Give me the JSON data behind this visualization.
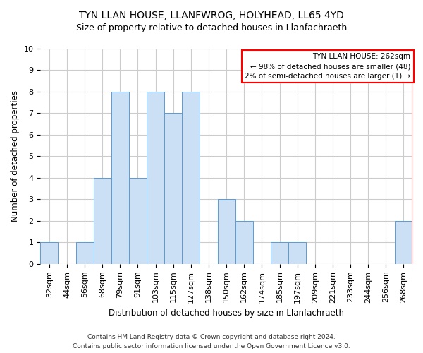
{
  "title": "TYN LLAN HOUSE, LLANFWROG, HOLYHEAD, LL65 4YD",
  "subtitle": "Size of property relative to detached houses in Llanfachraeth",
  "xlabel": "Distribution of detached houses by size in Llanfachraeth",
  "ylabel": "Number of detached properties",
  "categories": [
    "32sqm",
    "44sqm",
    "56sqm",
    "68sqm",
    "79sqm",
    "91sqm",
    "103sqm",
    "115sqm",
    "127sqm",
    "138sqm",
    "150sqm",
    "162sqm",
    "174sqm",
    "185sqm",
    "197sqm",
    "209sqm",
    "221sqm",
    "233sqm",
    "244sqm",
    "256sqm",
    "268sqm"
  ],
  "values": [
    1,
    0,
    1,
    4,
    8,
    4,
    8,
    7,
    8,
    0,
    3,
    2,
    0,
    1,
    1,
    0,
    0,
    0,
    0,
    0,
    2
  ],
  "bar_color": "#cce0f5",
  "bar_edge_color": "#5b9bd5",
  "red_line_index": 20,
  "ylim": [
    0,
    10
  ],
  "yticks": [
    0,
    1,
    2,
    3,
    4,
    5,
    6,
    7,
    8,
    9,
    10
  ],
  "annotation_title": "TYN LLAN HOUSE: 262sqm",
  "annotation_line1": "← 98% of detached houses are smaller (48)",
  "annotation_line2": "2% of semi-detached houses are larger (1) →",
  "footer_line1": "Contains HM Land Registry data © Crown copyright and database right 2024.",
  "footer_line2": "Contains public sector information licensed under the Open Government Licence v3.0.",
  "background_color": "#ffffff",
  "grid_color": "#cccccc",
  "title_fontsize": 10,
  "subtitle_fontsize": 9,
  "axis_label_fontsize": 8.5,
  "tick_fontsize": 8,
  "annotation_fontsize": 7.5,
  "footer_fontsize": 6.5
}
